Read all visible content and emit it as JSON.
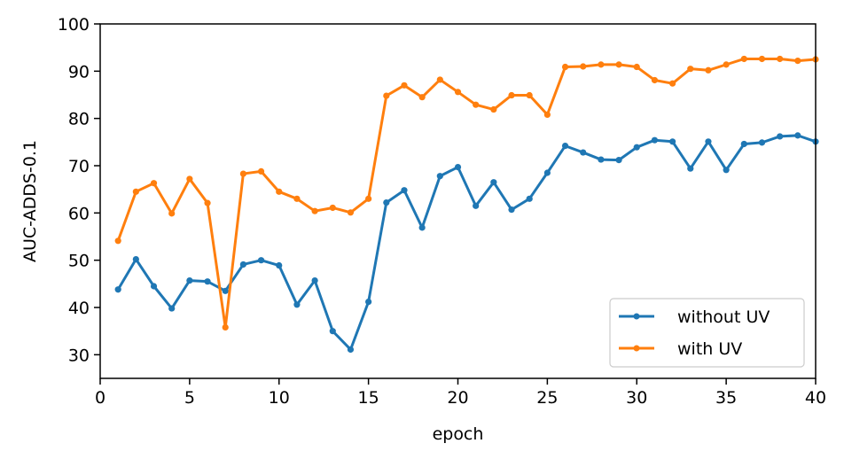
{
  "chart_data": {
    "type": "line",
    "xlabel": "epoch",
    "ylabel": "AUC-ADDS-0.1",
    "xlim": [
      0,
      40
    ],
    "ylim": [
      25,
      100
    ],
    "xticks": [
      0,
      5,
      10,
      15,
      20,
      25,
      30,
      35,
      40
    ],
    "yticks": [
      30,
      40,
      50,
      60,
      70,
      80,
      90,
      100
    ],
    "grid": false,
    "legend_position": "bottom-right",
    "x": [
      1,
      2,
      3,
      4,
      5,
      6,
      7,
      8,
      9,
      10,
      11,
      12,
      13,
      14,
      15,
      16,
      17,
      18,
      19,
      20,
      21,
      22,
      23,
      24,
      25,
      26,
      27,
      28,
      29,
      30,
      31,
      32,
      33,
      34,
      35,
      36,
      37,
      38,
      39,
      40
    ],
    "series": [
      {
        "name": "without UV",
        "color": "#1f77b4",
        "values": [
          43.8,
          50.2,
          44.5,
          39.8,
          45.7,
          45.5,
          43.5,
          49.1,
          50.0,
          48.9,
          40.6,
          45.7,
          35.0,
          31.1,
          41.2,
          62.2,
          64.8,
          56.9,
          67.8,
          69.7,
          61.5,
          66.5,
          60.7,
          63.0,
          68.5,
          74.2,
          72.8,
          71.3,
          71.2,
          73.9,
          75.4,
          75.1,
          69.4,
          75.1,
          69.1,
          74.6,
          74.9,
          76.2,
          76.4,
          75.1
        ]
      },
      {
        "name": "with UV",
        "color": "#ff7f0e",
        "values": [
          54.1,
          64.5,
          66.3,
          59.9,
          67.2,
          62.1,
          35.8,
          68.3,
          68.8,
          64.5,
          63.0,
          60.4,
          61.1,
          60.1,
          63.0,
          84.8,
          87.0,
          84.5,
          88.2,
          85.6,
          82.9,
          81.9,
          84.9,
          84.9,
          80.8,
          90.9,
          91.0,
          91.4,
          91.4,
          90.9,
          88.1,
          87.4,
          90.5,
          90.2,
          91.4,
          92.6,
          92.6,
          92.6,
          92.2,
          92.5
        ]
      }
    ]
  }
}
